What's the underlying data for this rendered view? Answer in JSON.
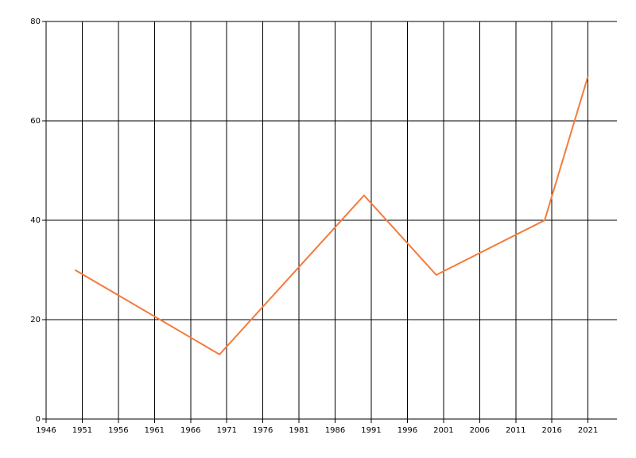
{
  "chart_data": {
    "type": "line",
    "x": [
      1950,
      1970,
      1990,
      2000,
      2015,
      2021
    ],
    "values": [
      30,
      13,
      45,
      29,
      40,
      69
    ],
    "color": "#f47b3c",
    "xlim": [
      1946,
      2025
    ],
    "xticks": [
      1946,
      1951,
      1956,
      1961,
      1966,
      1971,
      1976,
      1981,
      1986,
      1991,
      1996,
      2001,
      2006,
      2011,
      2016,
      2021
    ],
    "ylim": [
      0,
      80
    ],
    "yticks": [
      0,
      20,
      40,
      60,
      80
    ],
    "grid": true
  }
}
